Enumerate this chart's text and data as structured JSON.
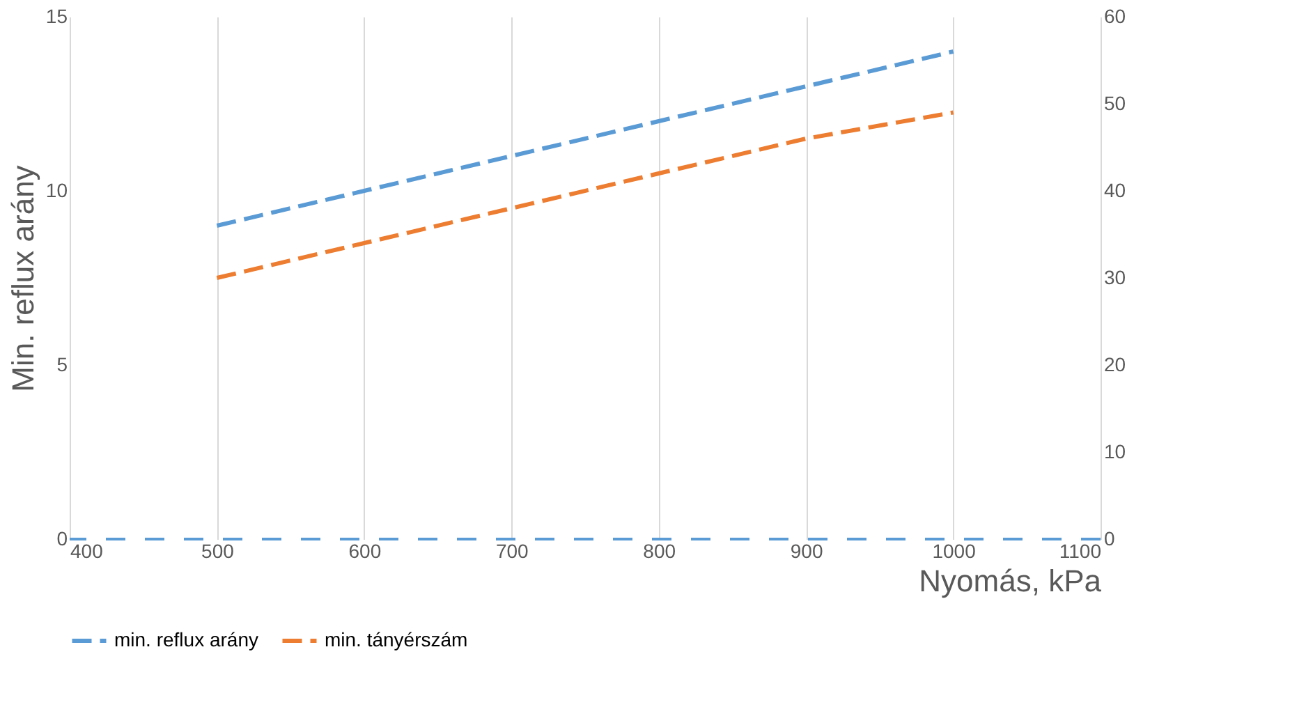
{
  "chart_data": {
    "type": "line",
    "xlabel": "Nyomás, kPa",
    "ylabel": "Min. reflux arány",
    "x": [
      500,
      600,
      700,
      800,
      900,
      1000
    ],
    "series": [
      {
        "name": "min. reflux arány",
        "color": "#5b9bd5",
        "values": [
          9,
          10,
          11,
          12,
          13,
          14
        ],
        "line_style": "dashed"
      },
      {
        "name": "min. tányérszám",
        "color": "#ed7d31",
        "values": [
          30,
          34,
          38,
          42,
          46,
          49
        ],
        "line_style": "dashed",
        "axis": "y2"
      }
    ],
    "xlim": [
      400,
      1100
    ],
    "xticks": [
      400,
      500,
      600,
      700,
      800,
      900,
      1000,
      1100
    ],
    "ylim": [
      0,
      15
    ],
    "yticks": [
      0,
      5,
      10,
      15
    ],
    "y2lim": [
      0,
      60
    ],
    "y2ticks": [
      0,
      10,
      20,
      30,
      40,
      50,
      60
    ],
    "ref_lines": [
      {
        "axis": "y",
        "value": 0,
        "color": "#5b9bd5",
        "line_style": "dashed"
      }
    ],
    "grid": "x",
    "legend": "bottom",
    "marker": "none"
  }
}
